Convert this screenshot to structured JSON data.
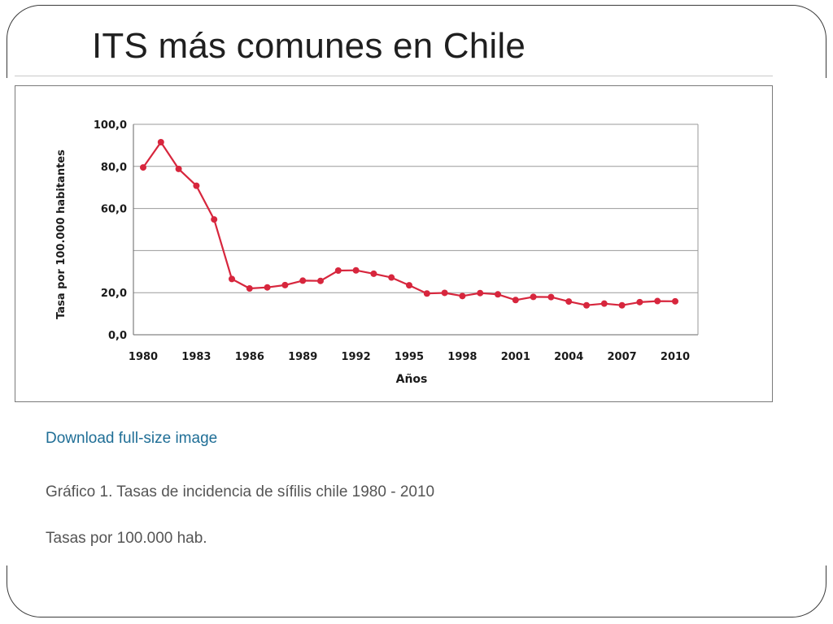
{
  "slide": {
    "title": "ITS más comunes en Chile"
  },
  "figure": {
    "download_label": "Download full-size image",
    "caption": "Gráfico 1. Tasas de incidencia de sífilis chile 1980 - 2010",
    "note": "Tasas por 100.000 hab."
  },
  "colors": {
    "series": "#d7263d",
    "grid": "#9a9a9a",
    "link": "#1f6e96"
  },
  "chart_data": {
    "type": "line",
    "title": "",
    "xlabel": "Años",
    "ylabel": "Tasa por 100.000 habitantes",
    "ylim": [
      0,
      100
    ],
    "yticks": [
      0,
      20,
      40,
      60,
      80,
      100
    ],
    "ytick_labels": [
      "0,0",
      "20,0",
      "",
      "60,0",
      "80,0",
      "100,0"
    ],
    "xlim": [
      1980,
      2010
    ],
    "xticks": [
      1980,
      1983,
      1986,
      1989,
      1992,
      1995,
      1998,
      2001,
      2004,
      2007,
      2010
    ],
    "xtick_labels": [
      "1980",
      "1983",
      "1986",
      "1989",
      "1992",
      "1995",
      "1998",
      "2001",
      "2004",
      "2007",
      "2010"
    ],
    "grid": "horizontal",
    "legend": "none",
    "series": [
      {
        "x": [
          1980,
          1981,
          1982,
          1983,
          1984,
          1985,
          1986,
          1987,
          1988,
          1989,
          1990,
          1991,
          1992,
          1993,
          1994,
          1995,
          1996,
          1997,
          1998,
          1999,
          2000,
          2001,
          2002,
          2003,
          2004,
          2005,
          2006,
          2007,
          2008,
          2009,
          2010
        ],
        "values": [
          79.5,
          91.5,
          78.8,
          70.8,
          54.8,
          26.5,
          22.0,
          22.5,
          23.6,
          25.7,
          25.6,
          30.5,
          30.6,
          29.0,
          27.2,
          23.5,
          19.6,
          19.9,
          18.4,
          19.8,
          19.2,
          16.5,
          18.0,
          17.9,
          15.8,
          14.0,
          14.8,
          14.0,
          15.5,
          16.0,
          15.9
        ]
      }
    ]
  }
}
